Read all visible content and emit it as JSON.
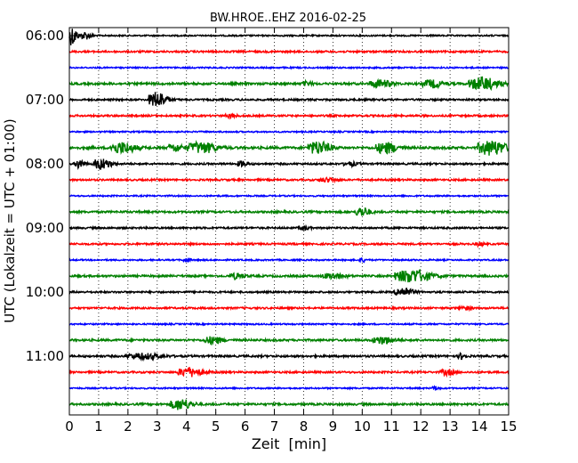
{
  "chart_data": {
    "type": "line",
    "title": "BW.HROE..EHZ 2016-02-25",
    "xlabel": "Zeit  [min]",
    "ylabel": "UTC (Lokalzeit = UTC + 01:00)",
    "xlim": [
      0,
      15
    ],
    "x_ticks": [
      "0",
      "1",
      "2",
      "3",
      "4",
      "5",
      "6",
      "7",
      "8",
      "9",
      "10",
      "11",
      "12",
      "13",
      "14",
      "15"
    ],
    "y_ticks": [
      {
        "label": "06:00",
        "trace": 0
      },
      {
        "label": "07:00",
        "trace": 4
      },
      {
        "label": "08:00",
        "trace": 8
      },
      {
        "label": "09:00",
        "trace": 12
      },
      {
        "label": "10:00",
        "trace": 16
      },
      {
        "label": "11:00",
        "trace": 20
      }
    ],
    "grid": "vertical dotted",
    "trace_minutes": 15,
    "trace_colors": [
      "#000000",
      "#ff0000",
      "#0000ff",
      "#008000"
    ],
    "traces": [
      {
        "start": "06:00",
        "color": "#000000",
        "noise": 0.8,
        "events": [
          {
            "t": 0.1,
            "amp": 11,
            "dur": 0.25
          },
          {
            "t": 0.55,
            "amp": 4,
            "dur": 0.3
          }
        ]
      },
      {
        "start": "06:15",
        "color": "#ff0000",
        "noise": 1.0,
        "events": []
      },
      {
        "start": "06:30",
        "color": "#0000ff",
        "noise": 0.8,
        "events": []
      },
      {
        "start": "06:45",
        "color": "#008000",
        "noise": 1.2,
        "events": [
          {
            "t": 8.1,
            "amp": 2,
            "dur": 0.3
          },
          {
            "t": 10.6,
            "amp": 4,
            "dur": 0.6
          },
          {
            "t": 12.4,
            "amp": 4,
            "dur": 0.6
          },
          {
            "t": 14.1,
            "amp": 7,
            "dur": 0.8
          }
        ]
      },
      {
        "start": "07:00",
        "color": "#000000",
        "noise": 1.0,
        "events": [
          {
            "t": 3.0,
            "amp": 9,
            "dur": 0.5
          }
        ]
      },
      {
        "start": "07:15",
        "color": "#ff0000",
        "noise": 1.0,
        "events": [
          {
            "t": 5.5,
            "amp": 2,
            "dur": 0.3
          }
        ]
      },
      {
        "start": "07:30",
        "color": "#0000ff",
        "noise": 0.8,
        "events": []
      },
      {
        "start": "07:45",
        "color": "#008000",
        "noise": 1.3,
        "events": [
          {
            "t": 1.8,
            "amp": 6,
            "dur": 0.7
          },
          {
            "t": 3.6,
            "amp": 4,
            "dur": 0.4
          },
          {
            "t": 4.5,
            "amp": 6,
            "dur": 0.8
          },
          {
            "t": 8.5,
            "amp": 7,
            "dur": 0.6
          },
          {
            "t": 10.8,
            "amp": 6,
            "dur": 0.6
          },
          {
            "t": 14.4,
            "amp": 8,
            "dur": 0.8
          }
        ]
      },
      {
        "start": "08:00",
        "color": "#000000",
        "noise": 1.0,
        "events": [
          {
            "t": 0.35,
            "amp": 5,
            "dur": 0.25
          },
          {
            "t": 1.1,
            "amp": 6,
            "dur": 0.5
          },
          {
            "t": 5.9,
            "amp": 3,
            "dur": 0.3
          },
          {
            "t": 9.6,
            "amp": 2,
            "dur": 0.4
          }
        ]
      },
      {
        "start": "08:15",
        "color": "#ff0000",
        "noise": 1.0,
        "events": [
          {
            "t": 8.8,
            "amp": 2,
            "dur": 0.5
          }
        ]
      },
      {
        "start": "08:30",
        "color": "#0000ff",
        "noise": 0.8,
        "events": []
      },
      {
        "start": "08:45",
        "color": "#008000",
        "noise": 1.1,
        "events": [
          {
            "t": 10.0,
            "amp": 5,
            "dur": 0.4
          }
        ]
      },
      {
        "start": "09:00",
        "color": "#000000",
        "noise": 1.0,
        "events": [
          {
            "t": 8.0,
            "amp": 2,
            "dur": 0.3
          }
        ]
      },
      {
        "start": "09:15",
        "color": "#ff0000",
        "noise": 1.0,
        "events": [
          {
            "t": 14.0,
            "amp": 2,
            "dur": 0.2
          }
        ]
      },
      {
        "start": "09:30",
        "color": "#0000ff",
        "noise": 0.8,
        "events": [
          {
            "t": 4.0,
            "amp": 2,
            "dur": 0.2
          },
          {
            "t": 10.0,
            "amp": 2,
            "dur": 0.2
          }
        ]
      },
      {
        "start": "09:45",
        "color": "#008000",
        "noise": 1.1,
        "events": [
          {
            "t": 5.7,
            "amp": 3,
            "dur": 0.4
          },
          {
            "t": 9.0,
            "amp": 3,
            "dur": 0.6
          },
          {
            "t": 11.7,
            "amp": 7,
            "dur": 1.0
          }
        ]
      },
      {
        "start": "10:00",
        "color": "#000000",
        "noise": 1.0,
        "events": [
          {
            "t": 11.4,
            "amp": 5,
            "dur": 0.5
          }
        ]
      },
      {
        "start": "10:15",
        "color": "#ff0000",
        "noise": 1.0,
        "events": [
          {
            "t": 13.5,
            "amp": 2,
            "dur": 0.3
          }
        ]
      },
      {
        "start": "10:30",
        "color": "#0000ff",
        "noise": 0.8,
        "events": []
      },
      {
        "start": "10:45",
        "color": "#008000",
        "noise": 1.1,
        "events": [
          {
            "t": 4.9,
            "amp": 4,
            "dur": 0.5
          },
          {
            "t": 10.7,
            "amp": 4,
            "dur": 0.6
          }
        ]
      },
      {
        "start": "11:00",
        "color": "#000000",
        "noise": 1.1,
        "events": [
          {
            "t": 2.5,
            "amp": 3,
            "dur": 1.0
          },
          {
            "t": 13.4,
            "amp": 3,
            "dur": 0.2
          }
        ]
      },
      {
        "start": "11:15",
        "color": "#ff0000",
        "noise": 1.0,
        "events": [
          {
            "t": 4.1,
            "amp": 5,
            "dur": 0.7
          },
          {
            "t": 12.9,
            "amp": 3,
            "dur": 0.4
          }
        ]
      },
      {
        "start": "11:30",
        "color": "#0000ff",
        "noise": 0.8,
        "events": [
          {
            "t": 12.5,
            "amp": 2,
            "dur": 0.2
          }
        ]
      },
      {
        "start": "11:45",
        "color": "#008000",
        "noise": 1.1,
        "events": [
          {
            "t": 3.8,
            "amp": 6,
            "dur": 0.6
          }
        ]
      }
    ]
  }
}
